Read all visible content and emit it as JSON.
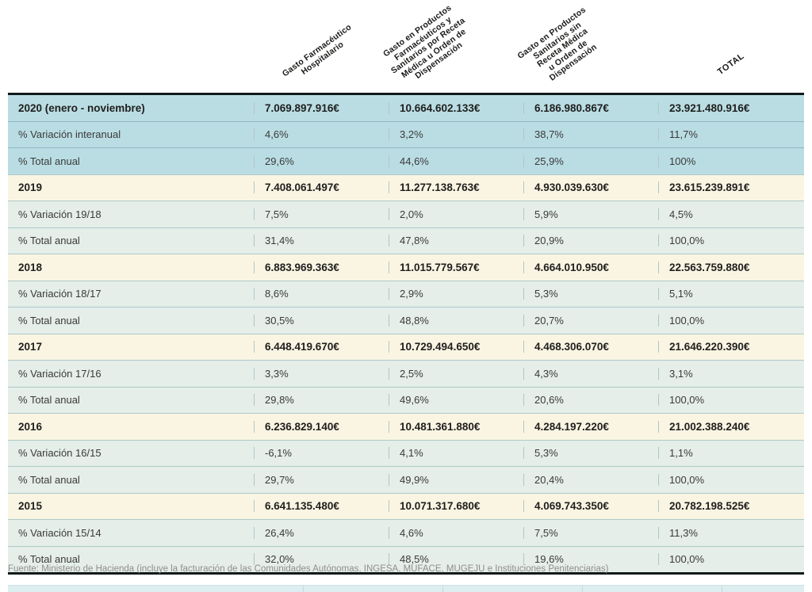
{
  "colors": {
    "group_2020_bg": "#badde4",
    "year_row_bg": "#faf5e3",
    "pct_row_bg": "#e5eee9",
    "table_border": "#10181a",
    "text_dark": "#1f1f1d",
    "footer_text": "#8e8e8e"
  },
  "chart_data": {
    "type": "table",
    "column_headers": [
      "Gasto Farmacéutico\nHospitalario",
      "Gasto en Productos\nFarmacéuticos y\nSanitarios por Receta\nMédica u Orden de\nDispensación",
      "Gasto en Productos\nSanitarios sin\nReceta Médica\nu Orden de\nDispensación",
      "TOTAL"
    ],
    "rows": [
      {
        "type": "year",
        "cells": [
          "2020 (enero - noviembre)",
          "7.069.897.916€",
          "10.664.602.133€",
          "6.186.980.867€",
          "23.921.480.916€"
        ]
      },
      {
        "type": "pct",
        "cells": [
          "% Variación interanual",
          "4,6%",
          "3,2%",
          "38,7%",
          "11,7%"
        ]
      },
      {
        "type": "pct",
        "cells": [
          "% Total anual",
          "29,6%",
          "44,6%",
          "25,9%",
          "100%"
        ]
      },
      {
        "type": "year",
        "cells": [
          "2019",
          "7.408.061.497€",
          "11.277.138.763€",
          "4.930.039.630€",
          "23.615.239.891€"
        ]
      },
      {
        "type": "pct",
        "cells": [
          "% Variación 19/18",
          "7,5%",
          "2,0%",
          "5,9%",
          "4,5%"
        ]
      },
      {
        "type": "pct",
        "cells": [
          "% Total anual",
          "31,4%",
          "47,8%",
          "20,9%",
          "100,0%"
        ]
      },
      {
        "type": "year",
        "cells": [
          "2018",
          "6.883.969.363€",
          "11.015.779.567€",
          "4.664.010.950€",
          "22.563.759.880€"
        ]
      },
      {
        "type": "pct",
        "cells": [
          "% Variación 18/17",
          "8,6%",
          "2,9%",
          "5,3%",
          "5,1%"
        ]
      },
      {
        "type": "pct",
        "cells": [
          "% Total anual",
          "30,5%",
          "48,8%",
          "20,7%",
          "100,0%"
        ]
      },
      {
        "type": "year",
        "cells": [
          "2017",
          "6.448.419.670€",
          "10.729.494.650€",
          "4.468.306.070€",
          "21.646.220.390€"
        ]
      },
      {
        "type": "pct",
        "cells": [
          "% Variación 17/16",
          "3,3%",
          "2,5%",
          "4,3%",
          "3,1%"
        ]
      },
      {
        "type": "pct",
        "cells": [
          "% Total anual",
          "29,8%",
          "49,6%",
          "20,6%",
          "100,0%"
        ]
      },
      {
        "type": "year",
        "cells": [
          "2016",
          "6.236.829.140€",
          "10.481.361.880€",
          "4.284.197.220€",
          "21.002.388.240€"
        ]
      },
      {
        "type": "pct",
        "cells": [
          "% Variación 16/15",
          "-6,1%",
          "4,1%",
          "5,3%",
          "1,1%"
        ]
      },
      {
        "type": "pct",
        "cells": [
          "% Total anual",
          "29,7%",
          "49,9%",
          "20,4%",
          "100,0%"
        ]
      },
      {
        "type": "year",
        "cells": [
          "2015",
          "6.641.135.480€",
          "10.071.317.680€",
          "4.069.743.350€",
          "20.782.198.525€"
        ]
      },
      {
        "type": "pct",
        "cells": [
          "% Variación 15/14",
          "26,4%",
          "4,6%",
          "7,5%",
          "11,3%"
        ]
      },
      {
        "type": "pct",
        "cells": [
          "% Total anual",
          "32,0%",
          "48,5%",
          "19,6%",
          "100,0%"
        ]
      }
    ]
  },
  "footer": {
    "source": "Fuente: Ministerio de Hacienda (incluye la facturación de las Comunidades Autónomas, INGESA, MUFACE, MUGEJU e Instituciones Penitenciarias)"
  }
}
